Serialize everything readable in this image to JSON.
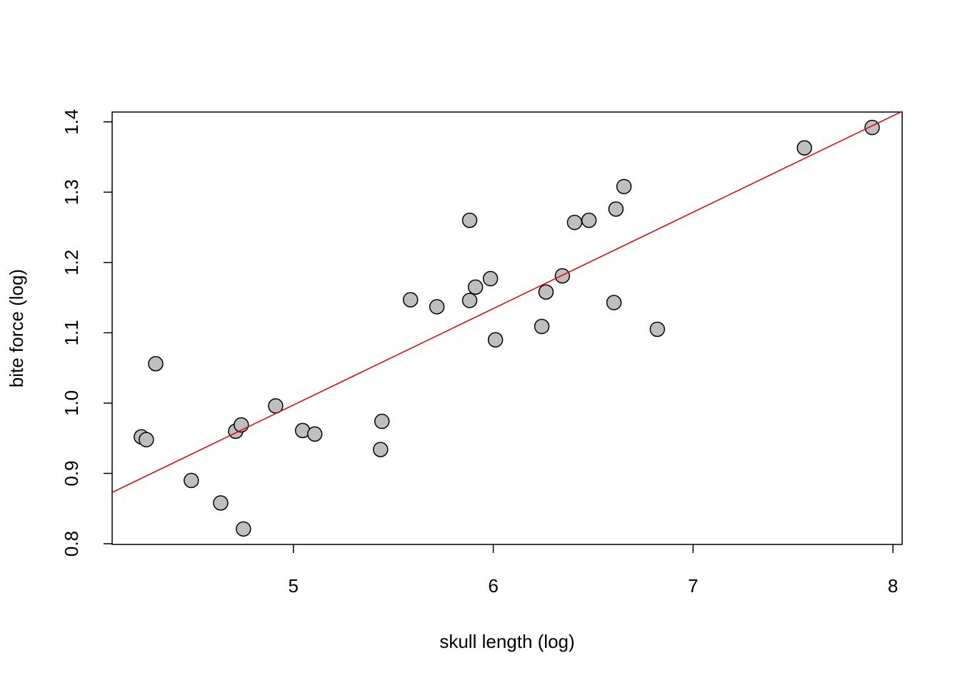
{
  "chart_data": {
    "type": "scatter",
    "xlabel": "skull length (log)",
    "ylabel": "bite force (log)",
    "x": [
      4.239,
      4.264,
      4.311,
      4.489,
      4.636,
      4.711,
      4.739,
      4.75,
      4.911,
      5.046,
      5.107,
      5.436,
      5.443,
      5.586,
      5.718,
      5.882,
      5.882,
      5.911,
      5.986,
      6.011,
      6.243,
      6.264,
      6.346,
      6.407,
      6.479,
      6.604,
      6.614,
      6.654,
      6.821,
      7.557,
      7.896
    ],
    "values": [
      0.952,
      0.948,
      1.056,
      0.89,
      0.858,
      0.96,
      0.969,
      0.821,
      0.996,
      0.961,
      0.956,
      0.934,
      0.974,
      1.147,
      1.137,
      1.26,
      1.146,
      1.165,
      1.177,
      1.09,
      1.109,
      1.158,
      1.181,
      1.257,
      1.26,
      1.143,
      1.276,
      1.308,
      1.105,
      1.363,
      1.392
    ],
    "color": "#bebebe",
    "fit_line": {
      "x": [
        4.093,
        8.046
      ],
      "y": [
        0.873,
        1.415
      ],
      "color": "#e00000"
    },
    "xlim": [
      4.093,
      8.046
    ],
    "ylim": [
      0.799,
      1.414
    ],
    "xticks": [
      5,
      6,
      7,
      8
    ],
    "yticks": [
      0.8,
      0.9,
      {
        "value": 1,
        "label": "1.0"
      },
      1.1,
      1.2,
      1.3,
      1.4
    ]
  }
}
